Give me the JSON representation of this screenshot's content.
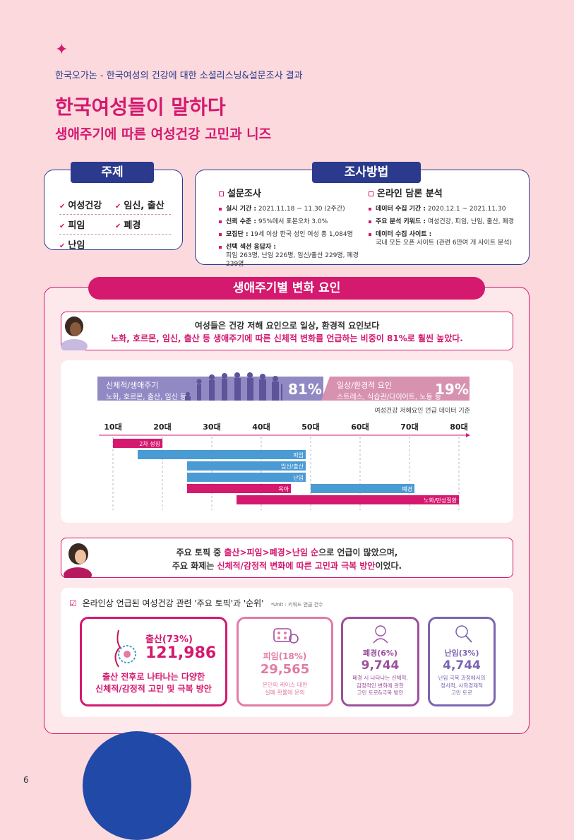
{
  "header": {
    "star": "✦",
    "supertitle": "한국오가논 - 한국여성의 건강에 대한 소셜리스닝&설문조사 결과",
    "title": "한국여성들이 말하다",
    "subtitle": "생애주기에 따른 여성건강 고민과 니즈"
  },
  "topics": {
    "tab": "주제",
    "items": [
      "여성건강",
      "임신, 출산",
      "피임",
      "폐경",
      "난임"
    ]
  },
  "method": {
    "tab": "조사방법",
    "survey": {
      "head": "설문조사",
      "items": [
        {
          "k": "실시 기간 :",
          "v": " 2021.11.18 ~ 11.30 (2주간)"
        },
        {
          "k": "신뢰 수준 :",
          "v": " 95%에서 표본오차 3.0%"
        },
        {
          "k": "모집단 :",
          "v": " 19세 이상 한국 성인 여성 총 1,084명"
        },
        {
          "k": "선택 섹션 응답자 :",
          "v": "피임 263명, 난임 226명, 임신/출산 229명, 폐경 239명"
        }
      ]
    },
    "online": {
      "head": "온라인 담론 분석",
      "items": [
        {
          "k": "데이터 수집 기간 :",
          "v": " 2020.12.1 ~ 2021.11.30"
        },
        {
          "k": "주요 분석 키워드 :",
          "v": " 여성건강, 피임, 난임, 출산, 폐경"
        },
        {
          "k": "데이터 수집 사이트 :",
          "v": "국내 모든 오픈 사이트 (관련 6만여 개 사이트 분석)"
        }
      ]
    }
  },
  "section": {
    "title": "생애주기별 변화 요인",
    "quote1_line1": "여성들은 건강 저해 요인으로 일상, 환경적 요인보다",
    "quote1_line2": "노화, 호르몬, 임신, 출산 등 생애주기에 따른 신체적 변화를 언급하는 비중이 81%로 훨씬 높았다.",
    "banner_left_title": "신체적/생애주기",
    "banner_left_sub": "노화, 호르몬, 출산, 임신 등",
    "banner_left_pct": "81%",
    "banner_right_title": "일상/환경적 요인",
    "banner_right_sub": "스트레스, 식습관/다이어트, 노동 등",
    "banner_right_pct": "19%",
    "note": "여성건강 저해요인 언급 데이터 기준",
    "quote2_a": "주요 토픽 중 ",
    "quote2_b": "출산>피임>폐경>난임 순",
    "quote2_c": "으로 언급이 많았으며,",
    "quote2_d": "주요 화제는 ",
    "quote2_e": "신체적/감정적 변화에 따른 고민과 극복 방안",
    "quote2_f": "이었다."
  },
  "chart_data": {
    "type": "bar",
    "x_ticks": [
      "10대",
      "20대",
      "30대",
      "40대",
      "50대",
      "60대",
      "70대",
      "80대"
    ],
    "x_values": [
      10,
      20,
      30,
      40,
      50,
      60,
      70,
      80
    ],
    "xlim": [
      10,
      80
    ],
    "bars": [
      {
        "label": "2차 성징",
        "start": 10,
        "end": 20,
        "color": "#d4196f"
      },
      {
        "label": "피임",
        "start": 15,
        "end": 49,
        "color": "#4a9bd4"
      },
      {
        "label": "임신/출산",
        "start": 25,
        "end": 49,
        "color": "#4a9bd4"
      },
      {
        "label": "난임",
        "start": 25,
        "end": 49,
        "color": "#4a9bd4"
      },
      {
        "label": "육아",
        "start": 25,
        "end": 46,
        "color": "#d4196f"
      },
      {
        "label": "폐경",
        "start": 50,
        "end": 71,
        "color": "#4a9bd4"
      },
      {
        "label": "노화/만성질환",
        "start": 35,
        "end": 80,
        "color": "#d4196f"
      }
    ]
  },
  "ranking": {
    "title": "온라인상 언급된 여성건강 관련 '주요 토픽'과 '순위'",
    "unit": "*Unit : 키워드 언급 건수",
    "cards": [
      {
        "label": "출산(73%)",
        "value": "121,986",
        "desc1": "출산 전후로 나타나는 다양한",
        "desc2": "신체적/감정적 고민 및 극복 방안",
        "color": "#d4196f"
      },
      {
        "label": "피임(18%)",
        "value": "29,565",
        "desc1": "본인의 케이스 대한",
        "desc2": "실패 확률에 문의",
        "color": "#e27ba6"
      },
      {
        "label": "폐경(6%)",
        "value": "9,744",
        "desc1": "폐경 시 나타나는 신체적,",
        "desc2": "감정적인 변화에 관한",
        "desc3": "고민 토로&극복 방안",
        "color": "#9c4f9e"
      },
      {
        "label": "난임(3%)",
        "value": "4,744",
        "desc1": "난임 극복 과정에서의",
        "desc2": "정서적, 사회경제적",
        "desc3": "고민 토로",
        "color": "#7b66b0"
      }
    ]
  },
  "page_number": "6"
}
